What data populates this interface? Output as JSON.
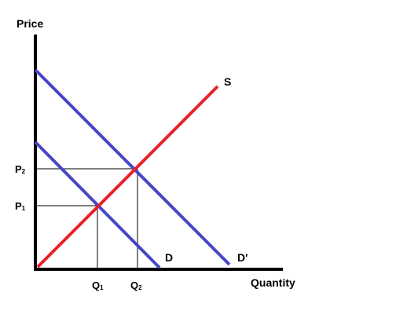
{
  "diagram": {
    "y_axis_label": "Price",
    "x_axis_label": "Quantity",
    "price_levels": [
      {
        "main": "P",
        "sub": "2"
      },
      {
        "main": "P",
        "sub": "1"
      }
    ],
    "quantity_levels": [
      {
        "main": "Q",
        "sub": "1"
      },
      {
        "main": "Q",
        "sub": "2"
      }
    ],
    "curves": {
      "supply": {
        "label": "S",
        "color": "#e8202a"
      },
      "demand": {
        "label": "D",
        "color": "#4646c6"
      },
      "demand_shifted": {
        "label": "D'",
        "color": "#4646c6"
      }
    },
    "axis_color": "#000000",
    "guide_color": "#000000"
  }
}
